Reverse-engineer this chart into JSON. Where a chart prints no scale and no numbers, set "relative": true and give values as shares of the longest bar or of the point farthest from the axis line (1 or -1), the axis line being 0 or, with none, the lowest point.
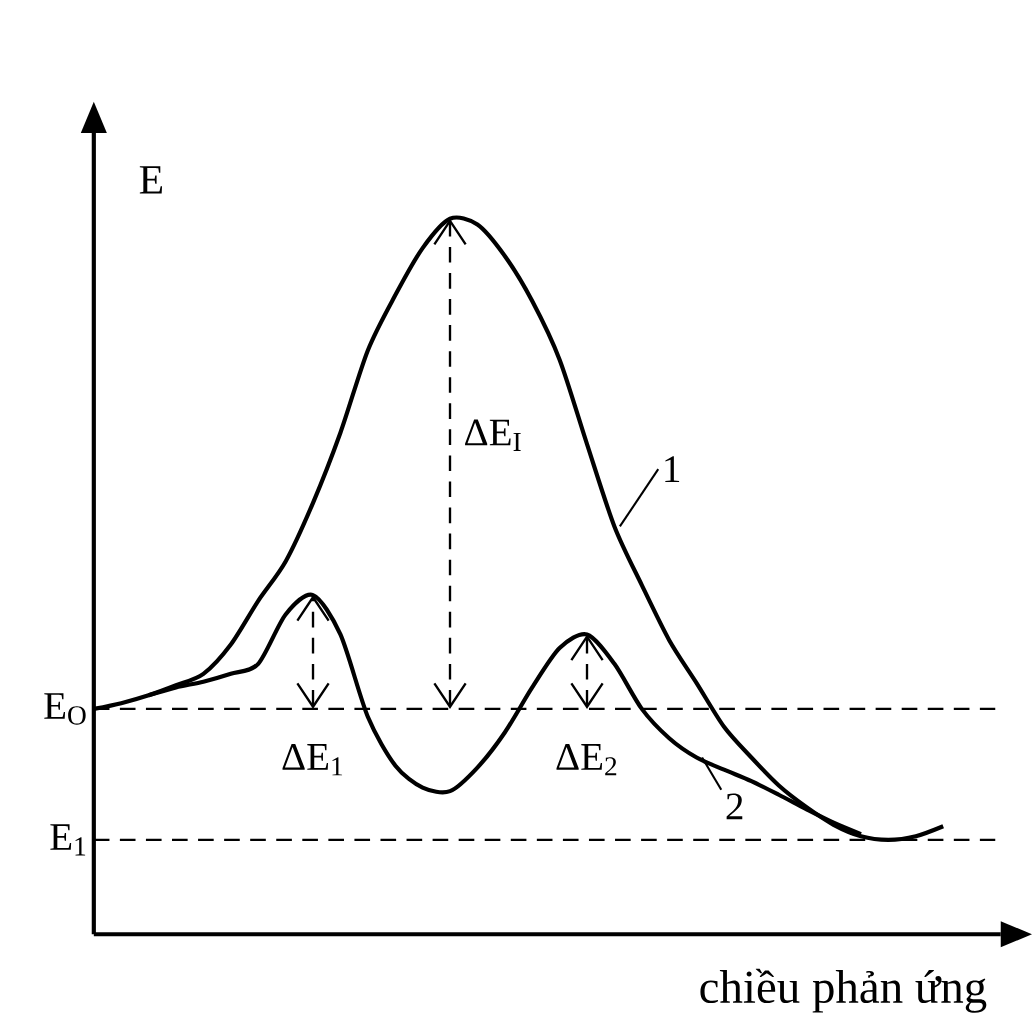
{
  "chart_data": {
    "type": "line",
    "relative": true,
    "xlabel": "chiều phản ứng",
    "ylabel": "E",
    "marker": "none",
    "line_style": "solid",
    "categories": [
      null,
      null,
      null,
      null,
      null,
      null,
      null,
      null,
      null,
      null,
      null,
      null,
      null,
      null,
      null,
      null,
      null,
      null,
      null,
      null,
      null,
      null,
      null,
      null,
      null,
      null,
      null,
      null,
      null,
      null,
      null,
      null
    ],
    "series": [
      {
        "name": "1",
        "color": "#000000",
        "values": [
          0.315,
          0.323,
          0.334,
          0.348,
          0.364,
          0.405,
          0.466,
          0.521,
          0.603,
          0.701,
          0.816,
          0.893,
          0.959,
          1.0,
          0.992,
          0.948,
          0.885,
          0.803,
          0.685,
          0.57,
          0.488,
          0.411,
          0.351,
          0.29,
          0.247,
          0.208,
          0.178,
          0.153,
          0.137,
          0.132,
          0.137,
          0.151
        ]
      },
      {
        "name": "2",
        "color": "#000000",
        "values": [
          null,
          null,
          0.334,
          0.345,
          0.353,
          0.364,
          0.378,
          0.447,
          0.474,
          0.419,
          0.304,
          0.236,
          0.205,
          0.2,
          0.233,
          0.282,
          0.345,
          0.4,
          0.419,
          0.378,
          0.315,
          0.274,
          0.247,
          0.23,
          0.214,
          0.195,
          0.175,
          0.156,
          0.14,
          null,
          null,
          null
        ]
      }
    ],
    "ref_lines": [
      {
        "axis": "y",
        "value": 0.315,
        "label": "E$_{O}$",
        "color": "#000000",
        "line_style": "dashed"
      },
      {
        "axis": "y",
        "value": 0.132,
        "label": "E$_{1}$",
        "color": "#000000",
        "line_style": "dashed"
      }
    ],
    "annotations": [
      "ΔE$_{I}$",
      "ΔE$_{1}$",
      "ΔE$_{2}$"
    ]
  }
}
